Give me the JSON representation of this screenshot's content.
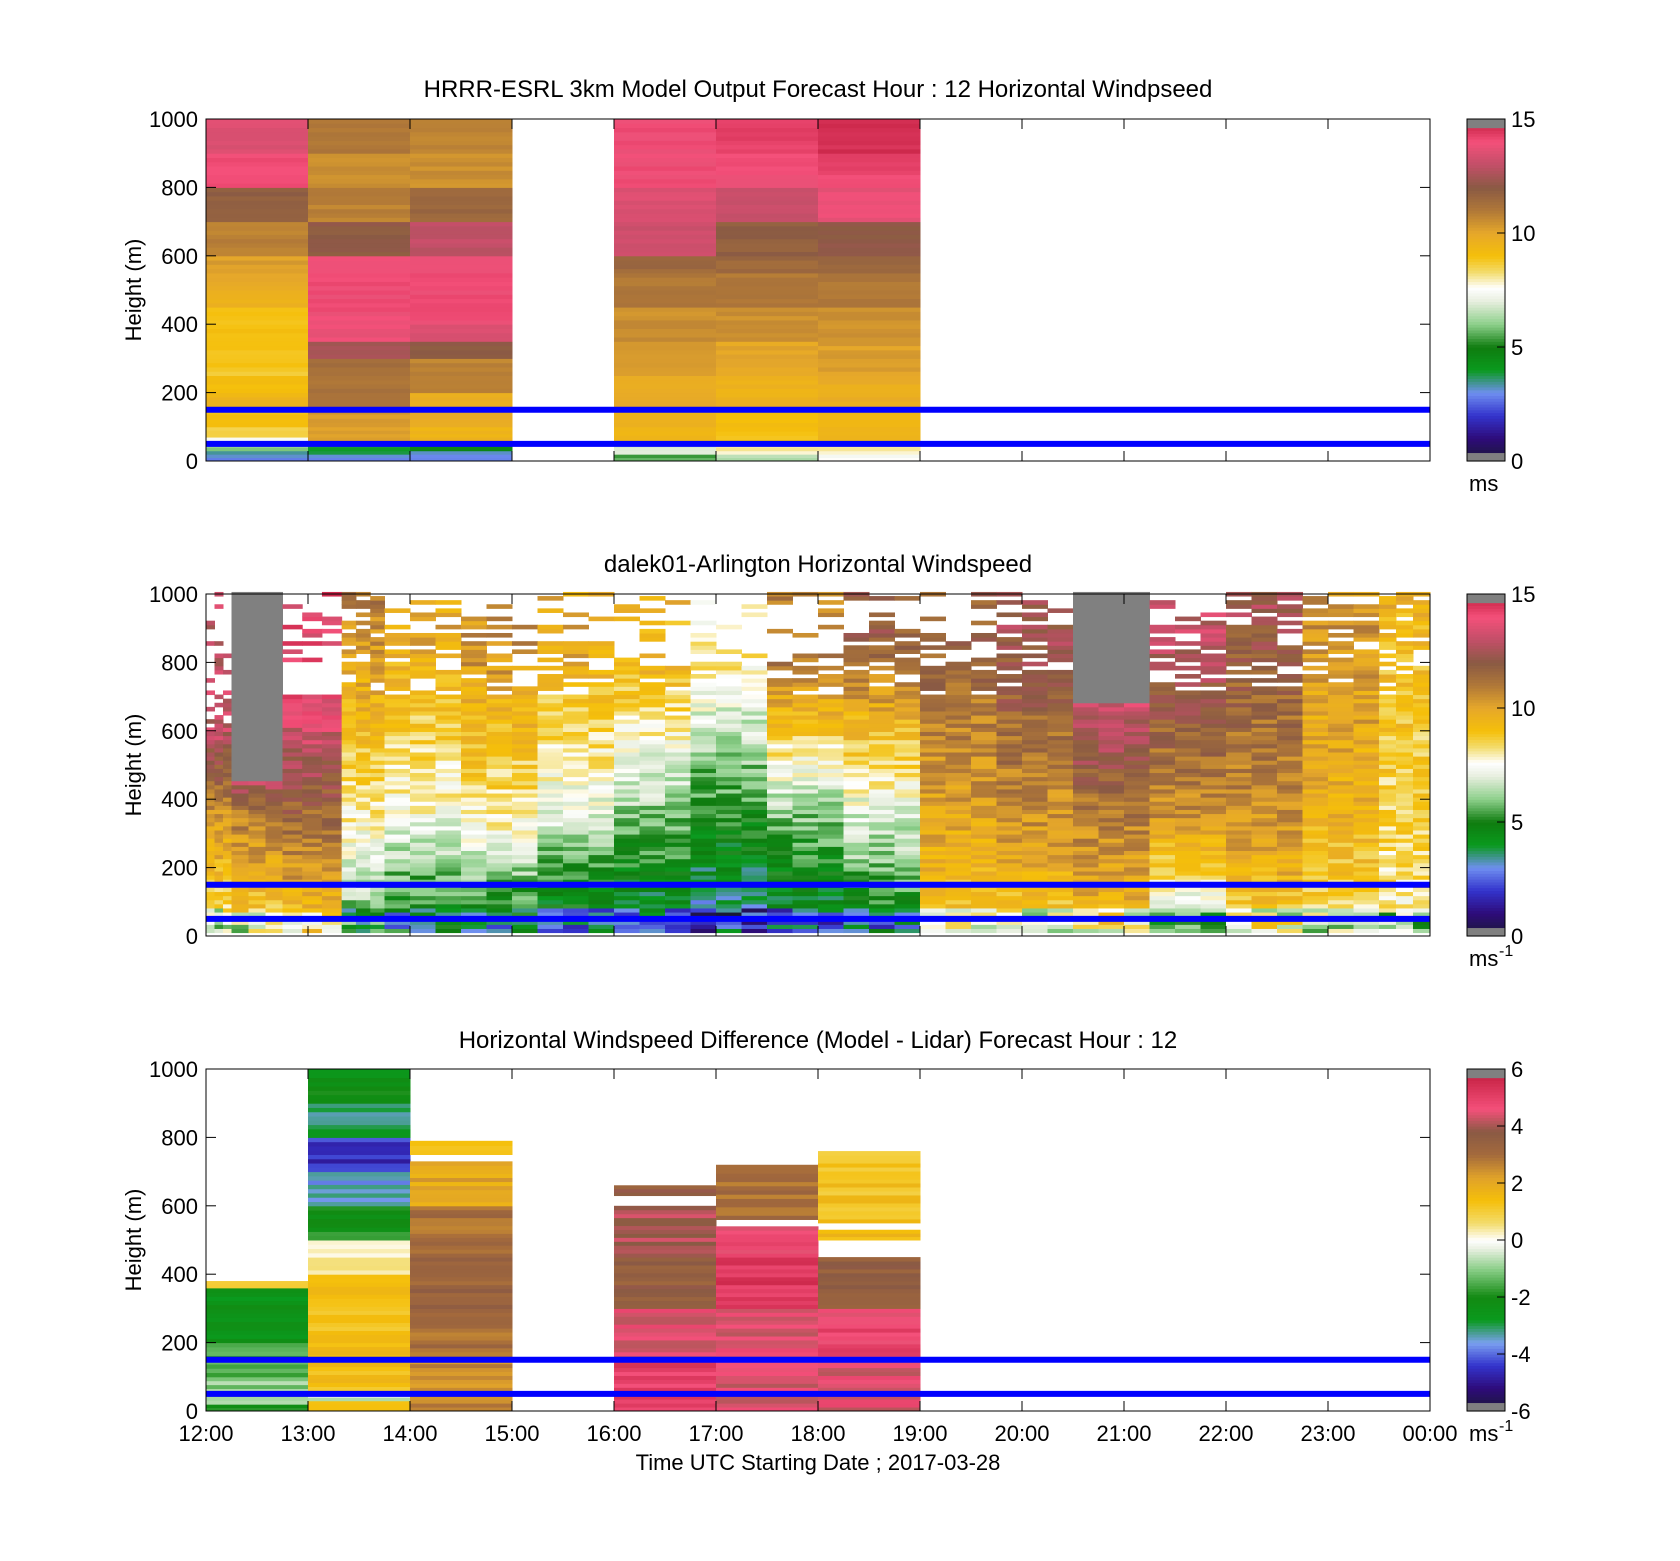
{
  "figure": {
    "xlabel": "Time UTC  Starting Date ; 2017-03-28",
    "time_ticks": [
      "12:00",
      "13:00",
      "14:00",
      "15:00",
      "16:00",
      "17:00",
      "18:00",
      "19:00",
      "20:00",
      "21:00",
      "22:00",
      "23:00",
      "00:00"
    ]
  },
  "chart_data": [
    {
      "type": "heatmap",
      "title": "HRRR-ESRL 3km Model Output   Forecast Hour : 12 Horizontal Windpseed",
      "ylabel": "Height (m)",
      "xlim_hours": [
        12,
        24
      ],
      "ylim": [
        0,
        1000
      ],
      "yticks": [
        "0",
        "200",
        "400",
        "600",
        "800",
        "1000"
      ],
      "colorbar": {
        "ticks": [
          "0",
          "5",
          "10",
          "15"
        ],
        "tick_values": [
          0,
          5,
          10,
          15
        ],
        "min": 0,
        "max": 15,
        "unit": "ms",
        "unit_sup": ""
      },
      "reference_lines_m": [
        50,
        150
      ],
      "columns": [
        {
          "start": 12,
          "end": 13,
          "cells": [
            [
              0,
              20,
              3
            ],
            [
              20,
              30,
              3.5
            ],
            [
              30,
              50,
              6
            ],
            [
              50,
              70,
              7.5
            ],
            [
              70,
              100,
              8.5
            ],
            [
              100,
              150,
              9
            ],
            [
              150,
              200,
              9.5
            ],
            [
              200,
              250,
              9
            ],
            [
              250,
              300,
              8.8
            ],
            [
              300,
              350,
              8.8
            ],
            [
              350,
              400,
              9
            ],
            [
              400,
              450,
              9
            ],
            [
              450,
              500,
              9.5
            ],
            [
              500,
              550,
              10
            ],
            [
              550,
              600,
              10.2
            ],
            [
              600,
              700,
              10.8
            ],
            [
              700,
              800,
              11.8
            ],
            [
              800,
              900,
              14
            ],
            [
              900,
              1000,
              13.5
            ]
          ]
        },
        {
          "start": 13,
          "end": 14,
          "cells": [
            [
              0,
              20,
              3
            ],
            [
              20,
              50,
              4
            ],
            [
              50,
              70,
              10
            ],
            [
              70,
              100,
              10.2
            ],
            [
              100,
              150,
              10.3
            ],
            [
              150,
              200,
              11
            ],
            [
              200,
              250,
              11.2
            ],
            [
              250,
              300,
              11.4
            ],
            [
              300,
              350,
              12.5
            ],
            [
              350,
              400,
              13.8
            ],
            [
              400,
              450,
              14
            ],
            [
              450,
              500,
              14
            ],
            [
              500,
              550,
              14
            ],
            [
              550,
              600,
              14
            ],
            [
              600,
              700,
              12
            ],
            [
              700,
              800,
              10.8
            ],
            [
              800,
              900,
              10.5
            ],
            [
              900,
              1000,
              11
            ]
          ]
        },
        {
          "start": 14,
          "end": 15,
          "cells": [
            [
              0,
              30,
              3
            ],
            [
              30,
              50,
              4.5
            ],
            [
              50,
              70,
              9.5
            ],
            [
              70,
              100,
              9.5
            ],
            [
              100,
              150,
              9.8
            ],
            [
              150,
              200,
              9.8
            ],
            [
              200,
              250,
              10.8
            ],
            [
              250,
              300,
              10.8
            ],
            [
              300,
              350,
              12
            ],
            [
              350,
              400,
              13.5
            ],
            [
              400,
              450,
              14
            ],
            [
              450,
              500,
              14
            ],
            [
              500,
              550,
              14
            ],
            [
              550,
              600,
              14
            ],
            [
              600,
              700,
              13
            ],
            [
              700,
              800,
              11.5
            ],
            [
              800,
              900,
              10.5
            ],
            [
              900,
              1000,
              10.8
            ]
          ]
        },
        {
          "start": 16,
          "end": 17,
          "cells": [
            [
              0,
              20,
              5.5
            ],
            [
              20,
              50,
              7
            ],
            [
              50,
              150,
              9.5
            ],
            [
              150,
              250,
              9.8
            ],
            [
              250,
              350,
              10.2
            ],
            [
              350,
              450,
              10.5
            ],
            [
              450,
              550,
              11
            ],
            [
              550,
              600,
              11.5
            ],
            [
              600,
              700,
              13.2
            ],
            [
              700,
              800,
              13.5
            ],
            [
              800,
              900,
              14
            ],
            [
              900,
              1000,
              14
            ]
          ]
        },
        {
          "start": 17,
          "end": 18,
          "cells": [
            [
              0,
              20,
              6.5
            ],
            [
              20,
              50,
              8
            ],
            [
              50,
              150,
              9
            ],
            [
              150,
              250,
              9.6
            ],
            [
              250,
              350,
              10
            ],
            [
              350,
              450,
              10.5
            ],
            [
              450,
              550,
              11
            ],
            [
              550,
              600,
              11.5
            ],
            [
              600,
              700,
              11.8
            ],
            [
              700,
              800,
              13.2
            ],
            [
              800,
              900,
              14
            ],
            [
              900,
              1000,
              14.2
            ]
          ]
        },
        {
          "start": 18,
          "end": 19,
          "cells": [
            [
              0,
              20,
              7.5
            ],
            [
              20,
              50,
              8
            ],
            [
              50,
              150,
              9.5
            ],
            [
              150,
              250,
              9.8
            ],
            [
              250,
              350,
              10.2
            ],
            [
              350,
              450,
              10.5
            ],
            [
              450,
              550,
              11
            ],
            [
              550,
              600,
              11.5
            ],
            [
              600,
              700,
              12
            ],
            [
              700,
              800,
              13.8
            ],
            [
              800,
              900,
              14.2
            ],
            [
              900,
              1000,
              14.6
            ]
          ]
        }
      ]
    },
    {
      "type": "heatmap",
      "title": "dalek01-Arlington  Horizontal Windspeed",
      "ylabel": "Height (m)",
      "xlim_hours": [
        12,
        24
      ],
      "ylim": [
        0,
        1000
      ],
      "yticks": [
        "0",
        "200",
        "400",
        "600",
        "800",
        "1000"
      ],
      "colorbar": {
        "ticks": [
          "0",
          "5",
          "10",
          "15"
        ],
        "tick_values": [
          0,
          5,
          10,
          15
        ],
        "min": 0,
        "max": 15,
        "unit": "ms",
        "unit_sup": "-1"
      },
      "reference_lines_m": [
        50,
        150
      ],
      "profiles": [
        {
          "start": 12.0,
          "end": 12.25,
          "low": 8.5,
          "mid": 10.5,
          "high": 13,
          "top": 600
        },
        {
          "start": 12.25,
          "end": 12.75,
          "low": 9,
          "mid": 11,
          "high": 14,
          "top": 500,
          "gray_above": 450
        },
        {
          "start": 12.75,
          "end": 13.33,
          "low": 9.5,
          "mid": 11.5,
          "high": 14,
          "top": 700
        },
        {
          "start": 13.33,
          "end": 13.75,
          "low": 6,
          "mid": 8,
          "high": 11,
          "top": 1000
        },
        {
          "start": 13.75,
          "end": 14.5,
          "low": 5,
          "mid": 7.5,
          "high": 10,
          "top": 880
        },
        {
          "start": 14.5,
          "end": 15.25,
          "low": 5,
          "mid": 8,
          "high": 10.5,
          "top": 850
        },
        {
          "start": 15.25,
          "end": 16.0,
          "low": 4.5,
          "mid": 7,
          "high": 10,
          "top": 850
        },
        {
          "start": 16.0,
          "end": 16.75,
          "low": 4,
          "mid": 6,
          "high": 9.5,
          "top": 800
        },
        {
          "start": 16.75,
          "end": 17.5,
          "low": 3.5,
          "mid": 5,
          "high": 8,
          "top": 780
        },
        {
          "start": 17.5,
          "end": 18.25,
          "low": 4,
          "mid": 6,
          "high": 11,
          "top": 780
        },
        {
          "start": 18.25,
          "end": 19.0,
          "low": 5,
          "mid": 7,
          "high": 12,
          "top": 900
        },
        {
          "start": 19.0,
          "end": 19.75,
          "low": 9,
          "mid": 10,
          "high": 11.5,
          "top": 800
        },
        {
          "start": 19.75,
          "end": 20.5,
          "low": 9,
          "mid": 10.5,
          "high": 12.5,
          "top": 900
        },
        {
          "start": 20.5,
          "end": 21.25,
          "low": 9.5,
          "mid": 11,
          "high": 13.5,
          "top": 700,
          "gray_above": 680
        },
        {
          "start": 21.25,
          "end": 22.0,
          "low": 7,
          "mid": 10.5,
          "high": 13,
          "top": 900
        },
        {
          "start": 22.0,
          "end": 22.75,
          "low": 9,
          "mid": 10.5,
          "high": 12.5,
          "top": 1000
        },
        {
          "start": 22.75,
          "end": 23.5,
          "low": 8.5,
          "mid": 9.5,
          "high": 10.5,
          "top": 1000
        },
        {
          "start": 23.5,
          "end": 24.0,
          "low": 8,
          "mid": 8.5,
          "high": 9.5,
          "top": 1000
        }
      ]
    },
    {
      "type": "heatmap",
      "title": "Horizontal Windspeed Difference (Model - Lidar) Forecast Hour : 12",
      "ylabel": "Height (m)",
      "xlim_hours": [
        12,
        24
      ],
      "ylim": [
        0,
        1000
      ],
      "yticks": [
        "0",
        "200",
        "400",
        "600",
        "800",
        "1000"
      ],
      "colorbar": {
        "ticks": [
          "-6",
          "-4",
          "-2",
          "0",
          "2",
          "4",
          "6"
        ],
        "tick_values": [
          -6,
          -4,
          -2,
          0,
          2,
          4,
          6
        ],
        "min": -6,
        "max": 6,
        "unit": "ms",
        "unit_sup": "-1"
      },
      "reference_lines_m": [
        50,
        150
      ],
      "columns": [
        {
          "start": 12,
          "end": 13,
          "cells": [
            [
              0,
              20,
              -2
            ],
            [
              20,
              100,
              -1
            ],
            [
              100,
              200,
              -1.5
            ],
            [
              200,
              360,
              -2.5
            ],
            [
              360,
              380,
              1
            ]
          ]
        },
        {
          "start": 13,
          "end": 14,
          "cells": [
            [
              0,
              30,
              1.5
            ],
            [
              30,
              60,
              -0.5
            ],
            [
              60,
              200,
              1.5
            ],
            [
              200,
              400,
              1.3
            ],
            [
              400,
              500,
              0.5
            ],
            [
              500,
              600,
              -2
            ],
            [
              600,
              700,
              -3.5
            ],
            [
              700,
              800,
              -4.5
            ],
            [
              800,
              900,
              -3
            ],
            [
              900,
              1000,
              -2.3
            ]
          ]
        },
        {
          "start": 14,
          "end": 15,
          "cells": [
            [
              0,
              150,
              2.5
            ],
            [
              150,
              300,
              3
            ],
            [
              300,
              450,
              3.3
            ],
            [
              450,
              600,
              3
            ],
            [
              600,
              730,
              2
            ],
            [
              750,
              790,
              1.5
            ]
          ]
        },
        {
          "start": 16,
          "end": 17,
          "cells": [
            [
              0,
              150,
              5
            ],
            [
              150,
              300,
              4.5
            ],
            [
              300,
              450,
              3.5
            ],
            [
              450,
              600,
              4
            ],
            [
              630,
              660,
              3.5
            ]
          ]
        },
        {
          "start": 17,
          "end": 18,
          "cells": [
            [
              0,
              150,
              4.5
            ],
            [
              150,
              300,
              4.5
            ],
            [
              300,
              450,
              5.2
            ],
            [
              450,
              540,
              4.8
            ],
            [
              560,
              720,
              3
            ]
          ]
        },
        {
          "start": 18,
          "end": 19,
          "cells": [
            [
              0,
              150,
              4.5
            ],
            [
              150,
              300,
              4.8
            ],
            [
              300,
              450,
              3.5
            ],
            [
              500,
              530,
              1.5
            ],
            [
              550,
              760,
              1.3
            ]
          ]
        }
      ]
    }
  ]
}
